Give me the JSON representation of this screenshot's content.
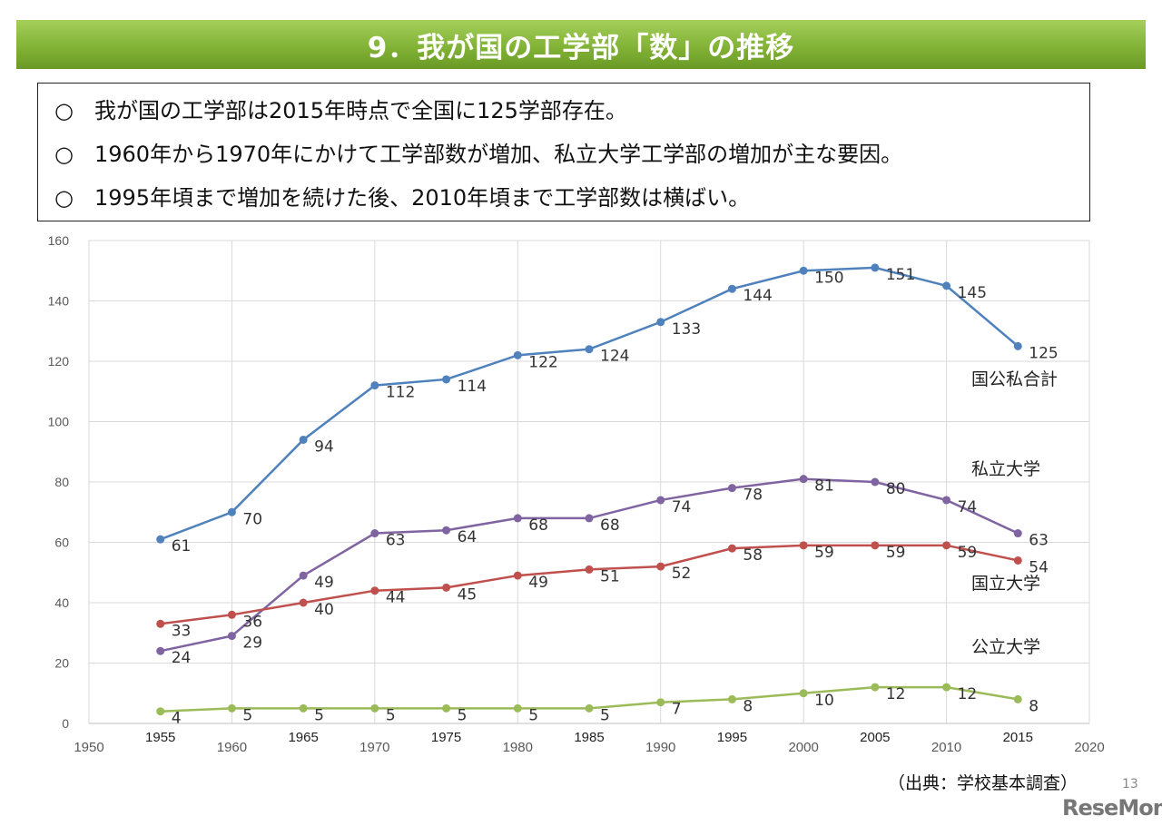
{
  "title": "9．我が国の工学部「数」の推移",
  "summary": {
    "bullet": "○",
    "items": [
      "我が国の工学部は2015年時点で全国に125学部存在。",
      "1960年から1970年にかけて工学部数が増加、私立大学工学部の増加が主な要因。",
      "1995年頃まで増加を続けた後、2010年頃まで工学部数は横ばい。"
    ]
  },
  "chart_data": {
    "type": "line",
    "x": [
      1955,
      1960,
      1965,
      1970,
      1975,
      1980,
      1985,
      1990,
      1995,
      2000,
      2005,
      2010,
      2015
    ],
    "xlim": [
      1950,
      2020
    ],
    "ylim": [
      0,
      160
    ],
    "xticks": [
      1950,
      1955,
      1960,
      1965,
      1970,
      1975,
      1980,
      1985,
      1990,
      1995,
      2000,
      2005,
      2010,
      2015,
      2020
    ],
    "yticks": [
      0,
      20,
      40,
      60,
      80,
      100,
      120,
      140,
      160
    ],
    "grid": true,
    "series": [
      {
        "name": "国公私合計",
        "color": "#4f81bd",
        "values": [
          61,
          70,
          94,
          112,
          114,
          122,
          124,
          133,
          144,
          150,
          151,
          145,
          125
        ]
      },
      {
        "name": "私立大学",
        "color": "#8064a2",
        "values": [
          24,
          29,
          49,
          63,
          64,
          68,
          68,
          74,
          78,
          81,
          80,
          74,
          63
        ]
      },
      {
        "name": "国立大学",
        "color": "#c0504d",
        "values": [
          33,
          36,
          40,
          44,
          45,
          49,
          51,
          52,
          58,
          59,
          59,
          59,
          54
        ]
      },
      {
        "name": "公立大学",
        "color": "#9bbb59",
        "values": [
          4,
          5,
          5,
          5,
          5,
          5,
          5,
          7,
          8,
          10,
          12,
          12,
          8
        ]
      }
    ]
  },
  "source": "（出典：学校基本調査）",
  "page_number": "13",
  "logo": "ReseMom"
}
